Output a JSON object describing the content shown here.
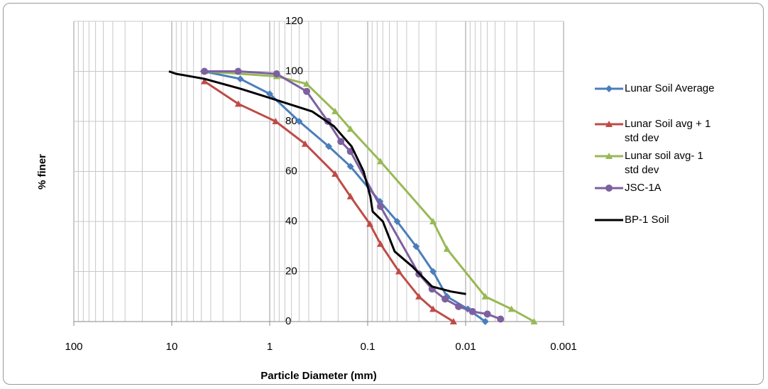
{
  "chart_data": {
    "type": "line",
    "x_label": "Particle Diameter (mm)",
    "y_label": "% finer",
    "xscale": "log",
    "xlim": [
      100,
      0.001
    ],
    "xticks": [
      100,
      10,
      1,
      0.1,
      0.01,
      0.001
    ],
    "ylim": [
      0,
      120
    ],
    "yticks": [
      0,
      20,
      40,
      60,
      80,
      100,
      120
    ],
    "grid": true,
    "legend": "right",
    "series": [
      {
        "name": "Lunar Soil Average",
        "color": "#4a7ebb",
        "marker": "diamond",
        "x": [
          4.75,
          2,
          1,
          0.5,
          0.25,
          0.15,
          0.075,
          0.05,
          0.032,
          0.0215,
          0.0155,
          0.0095,
          0.0063
        ],
        "values": [
          100,
          97,
          91,
          80,
          70,
          62,
          48,
          40,
          30,
          20,
          10,
          5,
          0
        ]
      },
      {
        "name": "Lunar Soil avg + 1 std dev",
        "color": "#be4b48",
        "marker": "triangle",
        "x": [
          4.64,
          2.09,
          0.87,
          0.435,
          0.215,
          0.15,
          0.095,
          0.074,
          0.048,
          0.03,
          0.0215,
          0.0133
        ],
        "values": [
          96,
          87,
          80,
          71,
          59,
          50,
          39,
          31,
          20,
          10,
          5,
          0
        ]
      },
      {
        "name": "Lunar soil avg- 1 std dev",
        "color": "#98b954",
        "marker": "triangle",
        "x": [
          4.64,
          0.85,
          0.42,
          0.215,
          0.15,
          0.074,
          0.0215,
          0.0155,
          0.0063,
          0.0034,
          0.002
        ],
        "values": [
          100,
          98,
          95,
          84,
          77,
          64,
          40,
          29,
          10,
          5,
          0
        ]
      },
      {
        "name": "JSC-1A",
        "color": "#7d60a0",
        "marker": "circle",
        "x": [
          4.64,
          2.1,
          0.85,
          0.42,
          0.255,
          0.188,
          0.15,
          0.074,
          0.03,
          0.022,
          0.0162,
          0.0118,
          0.0085,
          0.006,
          0.0044
        ],
        "values": [
          100,
          100,
          99,
          92,
          80,
          72,
          68,
          46,
          19,
          13,
          9,
          6,
          4,
          3,
          1
        ]
      },
      {
        "name": "BP-1 Soil",
        "color": "#000000",
        "marker": "none",
        "x": [
          10.7,
          9.0,
          4.64,
          1.97,
          0.93,
          0.37,
          0.22,
          0.146,
          0.11,
          0.094,
          0.089,
          0.07,
          0.053,
          0.035,
          0.022,
          0.0141,
          0.0099
        ],
        "values": [
          100,
          99,
          97,
          93,
          89,
          84,
          78,
          70,
          60,
          50,
          44,
          40,
          28,
          22,
          14,
          12,
          11
        ]
      }
    ]
  }
}
